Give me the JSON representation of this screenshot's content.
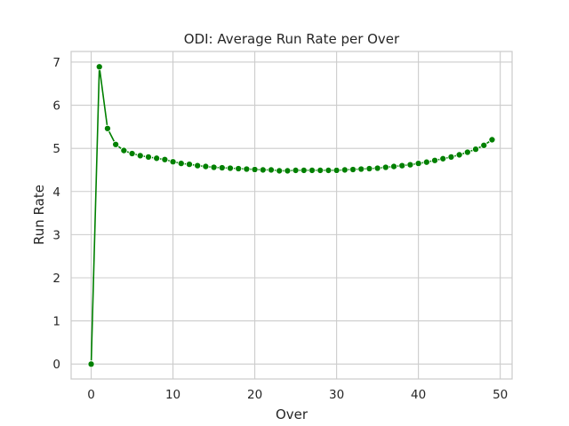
{
  "chart_data": {
    "type": "line",
    "title": "ODI: Average Run Rate per Over",
    "xlabel": "Over",
    "ylabel": "Run Rate",
    "xlim": [
      -2.45,
      51.45
    ],
    "ylim": [
      -0.345,
      7.245
    ],
    "x_ticks": [
      0,
      10,
      20,
      30,
      40,
      50
    ],
    "y_ticks": [
      0,
      1,
      2,
      3,
      4,
      5,
      6,
      7
    ],
    "grid": true,
    "series": [
      {
        "color": "#008000",
        "marker": "circle",
        "x": [
          0,
          1,
          2,
          3,
          4,
          5,
          6,
          7,
          8,
          9,
          10,
          11,
          12,
          13,
          14,
          15,
          16,
          17,
          18,
          19,
          20,
          21,
          22,
          23,
          24,
          25,
          26,
          27,
          28,
          29,
          30,
          31,
          32,
          33,
          34,
          35,
          36,
          37,
          38,
          39,
          40,
          41,
          42,
          43,
          44,
          45,
          46,
          47,
          48,
          49
        ],
        "y": [
          0.0,
          6.89,
          5.46,
          5.09,
          4.95,
          4.88,
          4.83,
          4.8,
          4.77,
          4.74,
          4.69,
          4.65,
          4.63,
          4.6,
          4.58,
          4.56,
          4.55,
          4.54,
          4.53,
          4.52,
          4.51,
          4.5,
          4.5,
          4.48,
          4.48,
          4.49,
          4.49,
          4.49,
          4.49,
          4.49,
          4.49,
          4.5,
          4.51,
          4.52,
          4.53,
          4.54,
          4.56,
          4.58,
          4.6,
          4.62,
          4.65,
          4.68,
          4.72,
          4.76,
          4.8,
          4.85,
          4.91,
          4.98,
          5.07,
          5.2
        ]
      }
    ]
  }
}
